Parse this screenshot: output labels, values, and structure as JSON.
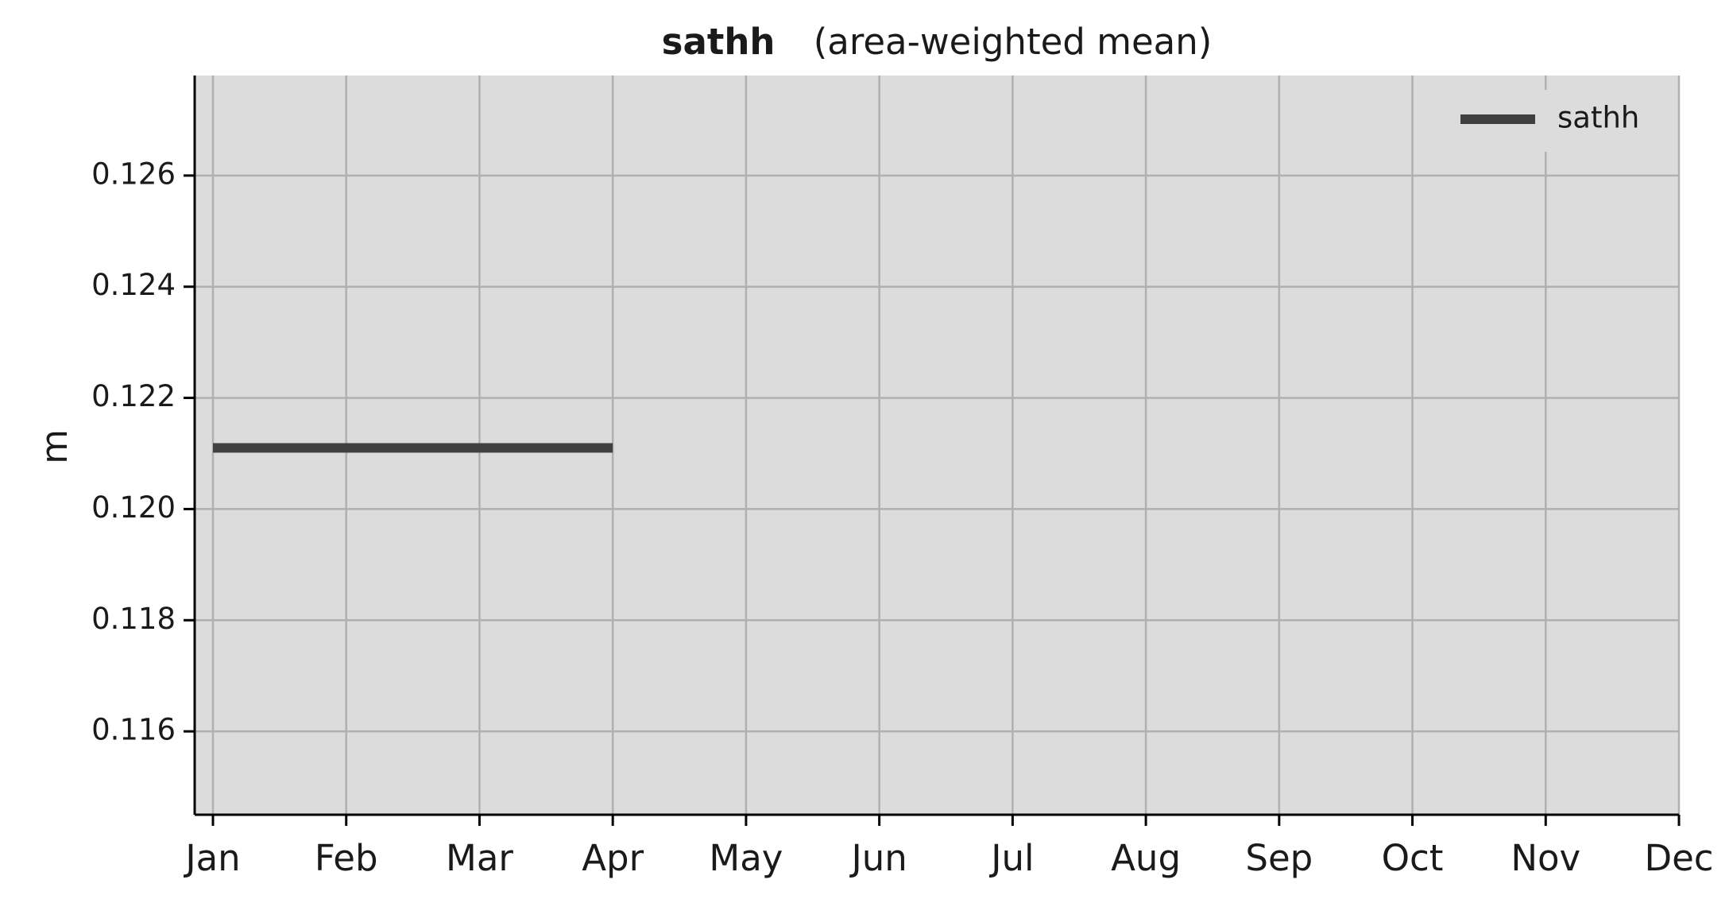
{
  "chart_data": {
    "type": "line",
    "title_bold": "sathh",
    "title_rest": "(area-weighted mean)",
    "xlabel": "",
    "ylabel": "m",
    "xlim": [
      "Jan",
      "Dec"
    ],
    "ylim": [
      0.1145,
      0.1278
    ],
    "grid": true,
    "legend_position": "top-right",
    "x_ticks": [
      "Jan",
      "Feb",
      "Mar",
      "Apr",
      "May",
      "Jun",
      "Jul",
      "Aug",
      "Sep",
      "Oct",
      "Nov",
      "Dec"
    ],
    "y_ticks": [
      "0.116",
      "0.118",
      "0.120",
      "0.122",
      "0.124",
      "0.126"
    ],
    "series": [
      {
        "name": "sathh",
        "color": "#404040",
        "x": [
          "Jan",
          "Apr"
        ],
        "values": [
          0.1211,
          0.1211
        ]
      }
    ]
  },
  "colors": {
    "plot_background": "#dcdcdc",
    "grid": "#b0b0b0",
    "axis": "#000000"
  }
}
